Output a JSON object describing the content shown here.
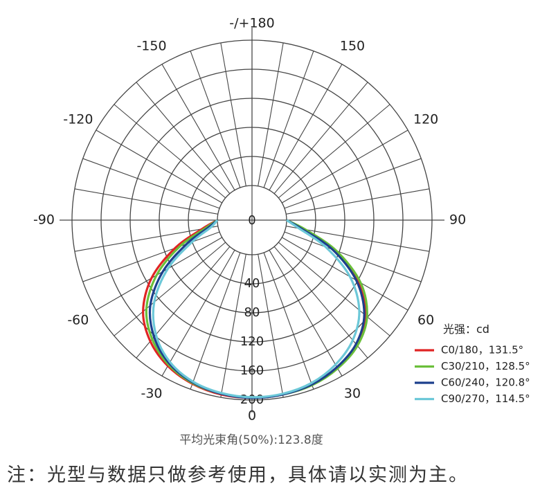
{
  "chart_data": {
    "type": "polar",
    "angle_labels": [
      {
        "angle": 180,
        "label": "-/+180"
      },
      {
        "angle": 150,
        "label": "150"
      },
      {
        "angle": 120,
        "label": "120"
      },
      {
        "angle": 90,
        "label": "90"
      },
      {
        "angle": 60,
        "label": "60"
      },
      {
        "angle": 30,
        "label": "30"
      },
      {
        "angle": 0,
        "label": "0"
      },
      {
        "angle": -30,
        "label": "-30"
      },
      {
        "angle": -60,
        "label": "-60"
      },
      {
        "angle": -90,
        "label": "-90"
      },
      {
        "angle": -120,
        "label": "-120"
      },
      {
        "angle": -150,
        "label": "-150"
      }
    ],
    "radial_ticks": [
      "0",
      "40",
      "80",
      "120",
      "160",
      "200"
    ],
    "rmax": 200,
    "angular_grid_step_deg": 10,
    "unit_label": "光强：cd",
    "series": [
      {
        "name": "C0/180，131.5°",
        "color": "#e02424",
        "angles": [
          -90,
          -80,
          -70,
          -60,
          -50,
          -40,
          -30,
          -20,
          -10,
          0,
          10,
          20,
          30,
          40,
          50,
          60,
          70,
          80,
          90
        ],
        "values": [
          0,
          22,
          65,
          112,
          148,
          170,
          184,
          192,
          196,
          197,
          196,
          193,
          187,
          176,
          156,
          120,
          72,
          25,
          0
        ]
      },
      {
        "name": "C30/210，128.5°",
        "color": "#6abf3a",
        "angles": [
          -90,
          -80,
          -70,
          -60,
          -50,
          -40,
          -30,
          -20,
          -10,
          0,
          10,
          20,
          30,
          40,
          50,
          60,
          70,
          80,
          90
        ],
        "values": [
          0,
          18,
          58,
          104,
          142,
          166,
          182,
          191,
          195,
          197,
          196,
          194,
          188,
          178,
          159,
          125,
          76,
          27,
          0
        ]
      },
      {
        "name": "C60/240，120.8°",
        "color": "#1c3f8c",
        "angles": [
          -90,
          -80,
          -70,
          -60,
          -50,
          -40,
          -30,
          -20,
          -10,
          0,
          10,
          20,
          30,
          40,
          50,
          60,
          70,
          80,
          90
        ],
        "values": [
          0,
          14,
          48,
          94,
          135,
          162,
          180,
          190,
          195,
          197,
          196,
          193,
          186,
          175,
          154,
          118,
          70,
          22,
          0
        ]
      },
      {
        "name": "C90/270，114.5°",
        "color": "#6cc8d8",
        "angles": [
          -90,
          -80,
          -70,
          -60,
          -50,
          -40,
          -30,
          -20,
          -10,
          0,
          10,
          20,
          30,
          40,
          50,
          60,
          70,
          80,
          90
        ],
        "values": [
          0,
          10,
          40,
          86,
          128,
          158,
          178,
          189,
          194,
          196,
          195,
          191,
          182,
          168,
          145,
          108,
          60,
          18,
          0
        ]
      }
    ]
  },
  "caption": "平均光束角(50%):123.8度",
  "note": "注：光型与数据只做参考使用，具体请以实测为主。"
}
